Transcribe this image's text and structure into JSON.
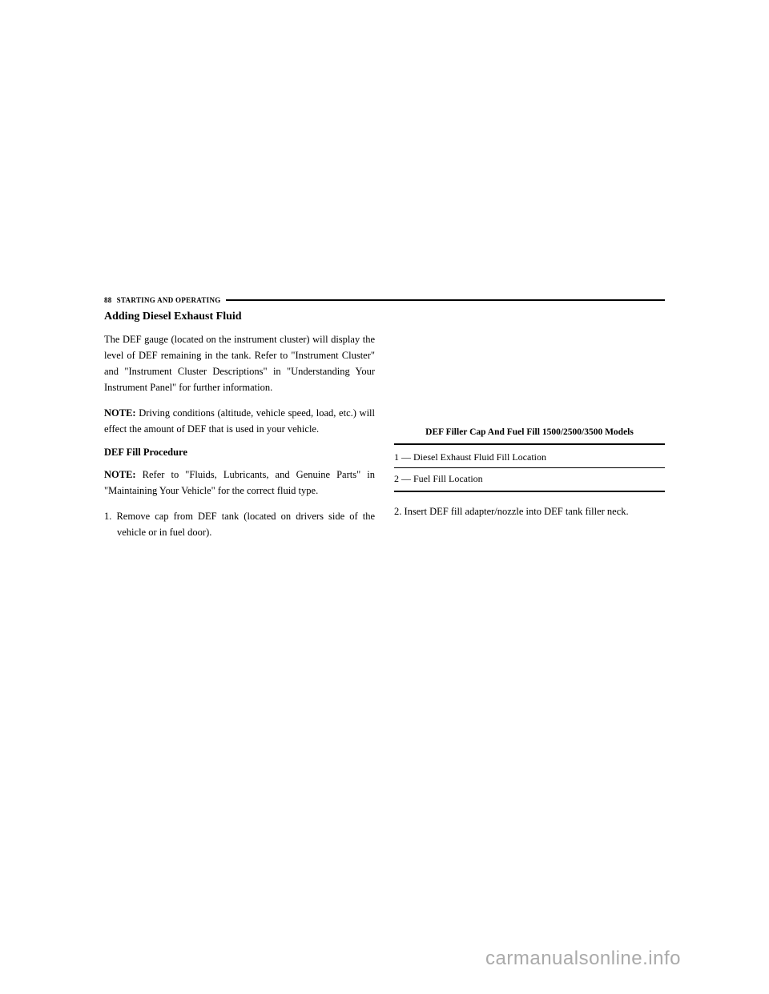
{
  "header": {
    "page_number": "88",
    "section_title": "STARTING AND OPERATING"
  },
  "left_column": {
    "heading": "Adding Diesel Exhaust Fluid",
    "para1": "The DEF gauge (located on the instrument cluster) will display the level of DEF remaining in the tank. Refer to \"Instrument Cluster\" and \"Instrument Cluster Descriptions\" in \"Understanding Your Instrument Panel\" for further information.",
    "note1_label": "NOTE:",
    "note1_text": " Driving conditions (altitude, vehicle speed, load, etc.) will effect the amount of DEF that is used in your vehicle.",
    "sub_heading": "DEF Fill Procedure",
    "note2_label": "NOTE:",
    "note2_text": " Refer to \"Fluids, Lubricants, and Genuine Parts\" in \"Maintaining Your Vehicle\" for the correct fluid type.",
    "step1": "1. Remove cap from DEF tank (located on drivers side of the vehicle or in fuel door)."
  },
  "right_column": {
    "figure_caption": "DEF Filler Cap And Fuel Fill 1500/2500/3500 Models",
    "legend1": "1 — Diesel Exhaust Fluid Fill Location",
    "legend2": "2 — Fuel Fill Location",
    "step2": "2. Insert DEF fill adapter/nozzle into DEF tank filler neck."
  },
  "watermark": "carmanualsonline.info"
}
